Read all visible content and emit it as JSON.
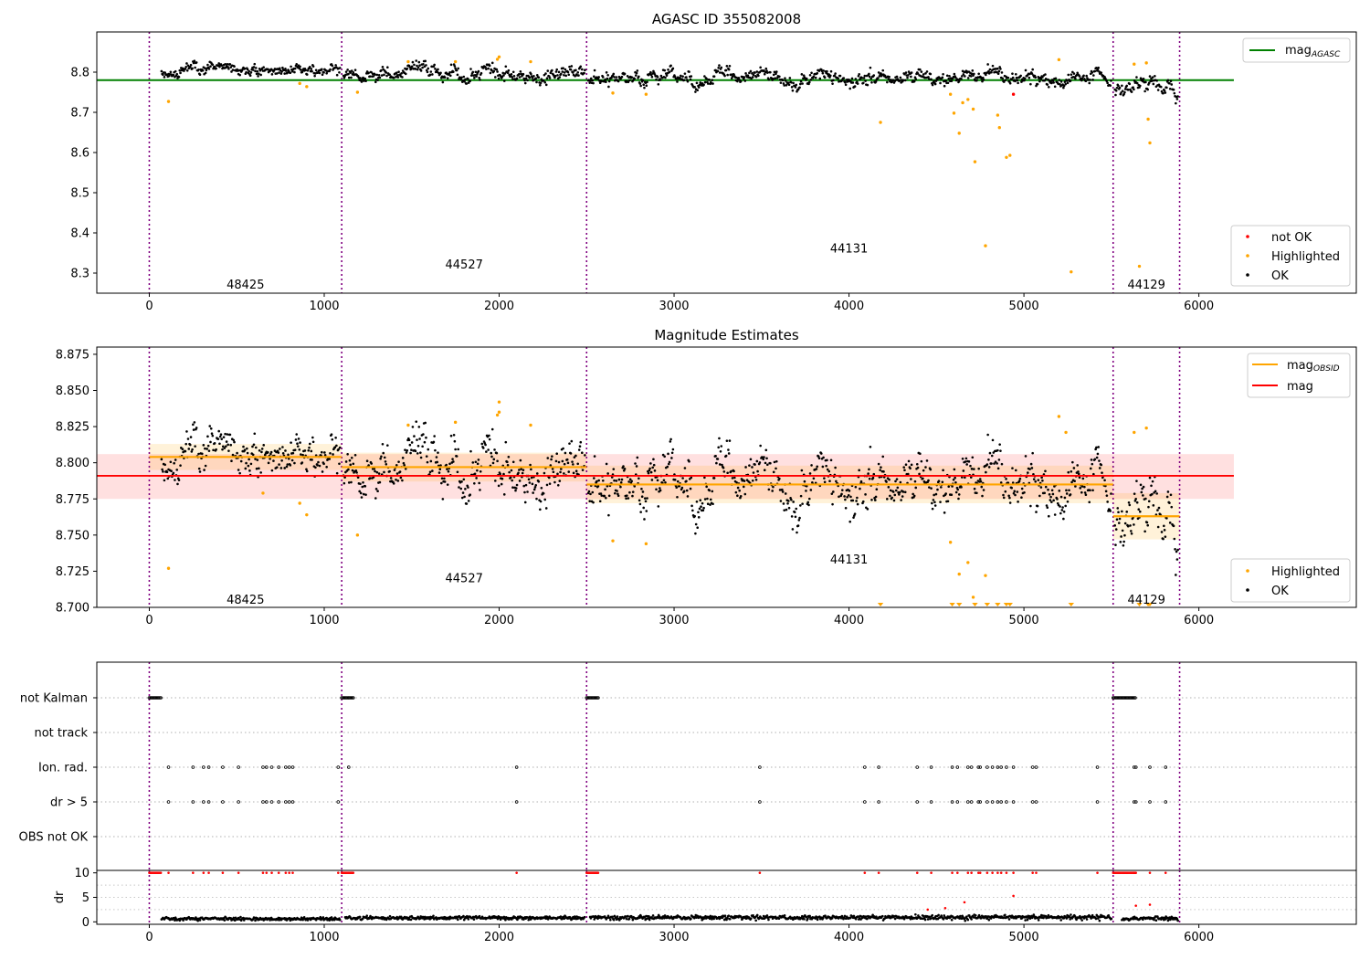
{
  "chart_data": [
    {
      "type": "scatter",
      "title": "AGASC ID 355082008",
      "xlim": [
        -300,
        6900
      ],
      "ylim": [
        8.25,
        8.9
      ],
      "xticks": [
        0,
        1000,
        2000,
        3000,
        4000,
        5000,
        6000
      ],
      "yticks": [
        8.3,
        8.4,
        8.5,
        8.6,
        8.7,
        8.8
      ],
      "obsid_boundaries": [
        0,
        1100,
        2500,
        5510,
        5890
      ],
      "obsid_labels": [
        {
          "text": "48425",
          "x": 550,
          "y": 8.27
        },
        {
          "text": "44527",
          "x": 1800,
          "y": 8.32
        },
        {
          "text": "44131",
          "x": 4000,
          "y": 8.36
        },
        {
          "text": "44129",
          "x": 5700,
          "y": 8.27
        }
      ],
      "hlines": [
        {
          "name": "mag_AGASC",
          "value": 8.78,
          "x0": -300,
          "x1": 6200,
          "color": "#008000"
        }
      ],
      "segments": [
        {
          "x0": 70,
          "x1": 1090,
          "level": 8.805,
          "noise": 0.009
        },
        {
          "x0": 1110,
          "x1": 2490,
          "level": 8.798,
          "noise": 0.011
        },
        {
          "x0": 2510,
          "x1": 5500,
          "level": 8.783,
          "noise": 0.011
        },
        {
          "x0": 5520,
          "x1": 5880,
          "level": 8.765,
          "noise": 0.012
        }
      ],
      "highlighted_points": [
        [
          110,
          8.727
        ],
        [
          860,
          8.772
        ],
        [
          900,
          8.764
        ],
        [
          1190,
          8.75
        ],
        [
          1480,
          8.826
        ],
        [
          1750,
          8.826
        ],
        [
          1990,
          8.832
        ],
        [
          2000,
          8.838
        ],
        [
          2180,
          8.826
        ],
        [
          2650,
          8.748
        ],
        [
          2840,
          8.745
        ],
        [
          4180,
          8.675
        ],
        [
          4580,
          8.745
        ],
        [
          4600,
          8.698
        ],
        [
          4630,
          8.648
        ],
        [
          4650,
          8.724
        ],
        [
          4680,
          8.732
        ],
        [
          4710,
          8.708
        ],
        [
          4720,
          8.577
        ],
        [
          4780,
          8.368
        ],
        [
          4850,
          8.693
        ],
        [
          4860,
          8.662
        ],
        [
          4900,
          8.588
        ],
        [
          4920,
          8.593
        ],
        [
          5200,
          8.831
        ],
        [
          5270,
          8.303
        ],
        [
          5630,
          8.82
        ],
        [
          5660,
          8.317
        ],
        [
          5700,
          8.823
        ],
        [
          5710,
          8.683
        ],
        [
          5720,
          8.624
        ]
      ],
      "not_ok_points": [
        [
          4940,
          8.745
        ]
      ],
      "legends": {
        "lines": [
          {
            "label": "mag",
            "subscript": "AGASC",
            "color": "#008000"
          }
        ],
        "markers": [
          {
            "label": "not OK",
            "color": "#ff0000"
          },
          {
            "label": "Highlighted",
            "color": "#ffa500"
          },
          {
            "label": "OK",
            "color": "#000000"
          }
        ]
      },
      "legend_placement": [
        "upper right",
        "lower right"
      ]
    },
    {
      "type": "scatter",
      "title": "Magnitude Estimates",
      "xlim": [
        -300,
        6900
      ],
      "ylim": [
        8.7,
        8.88
      ],
      "xticks": [
        0,
        1000,
        2000,
        3000,
        4000,
        5000,
        6000
      ],
      "yticks": [
        8.7,
        8.725,
        8.75,
        8.775,
        8.8,
        8.825,
        8.85,
        8.875
      ],
      "ytick_labels": [
        "8.700",
        "8.725",
        "8.750",
        "8.775",
        "8.800",
        "8.825",
        "8.850",
        "8.875"
      ],
      "obsid_boundaries": [
        0,
        1100,
        2500,
        5510,
        5890
      ],
      "obsid_labels": [
        {
          "text": "48425",
          "x": 550,
          "y": 8.705
        },
        {
          "text": "44527",
          "x": 1800,
          "y": 8.72
        },
        {
          "text": "44131",
          "x": 4000,
          "y": 8.733
        },
        {
          "text": "44129",
          "x": 5700,
          "y": 8.705
        }
      ],
      "mag_band": {
        "value": 8.791,
        "lo": 8.775,
        "hi": 8.806,
        "x0": -300,
        "x1": 6200,
        "color": "#ff0000"
      },
      "obsid_mags": [
        {
          "x0": 0,
          "x1": 1100,
          "value": 8.804,
          "lo": 8.795,
          "hi": 8.813
        },
        {
          "x0": 1100,
          "x1": 2500,
          "value": 8.797,
          "lo": 8.787,
          "hi": 8.807
        },
        {
          "x0": 2500,
          "x1": 5510,
          "value": 8.785,
          "lo": 8.772,
          "hi": 8.798
        },
        {
          "x0": 5510,
          "x1": 5890,
          "value": 8.763,
          "lo": 8.747,
          "hi": 8.779
        }
      ],
      "segments": [
        {
          "x0": 70,
          "x1": 1090,
          "level": 8.805,
          "noise": 0.009
        },
        {
          "x0": 1110,
          "x1": 2490,
          "level": 8.798,
          "noise": 0.011
        },
        {
          "x0": 2510,
          "x1": 5500,
          "level": 8.783,
          "noise": 0.011
        },
        {
          "x0": 5520,
          "x1": 5880,
          "level": 8.765,
          "noise": 0.012
        }
      ],
      "highlighted_points": [
        [
          110,
          8.727
        ],
        [
          650,
          8.779
        ],
        [
          860,
          8.772
        ],
        [
          900,
          8.764
        ],
        [
          1190,
          8.75
        ],
        [
          1480,
          8.826
        ],
        [
          1750,
          8.828
        ],
        [
          1990,
          8.833
        ],
        [
          2000,
          8.842
        ],
        [
          2000,
          8.835
        ],
        [
          2180,
          8.826
        ],
        [
          2650,
          8.746
        ],
        [
          2840,
          8.744
        ],
        [
          4580,
          8.745
        ],
        [
          4630,
          8.723
        ],
        [
          4680,
          8.731
        ],
        [
          4710,
          8.707
        ],
        [
          4780,
          8.722
        ],
        [
          5200,
          8.832
        ],
        [
          5240,
          8.821
        ],
        [
          5630,
          8.821
        ],
        [
          5700,
          8.824
        ]
      ],
      "offscale_points": [
        4180,
        4590,
        4630,
        4720,
        4790,
        4850,
        4900,
        4920,
        5270,
        5660,
        5710,
        5720
      ],
      "legends": {
        "lines": [
          {
            "label": "mag",
            "subscript": "OBSID",
            "color": "#ffa500"
          },
          {
            "label": "mag",
            "subscript": "",
            "color": "#ff0000"
          }
        ],
        "markers": [
          {
            "label": "Highlighted",
            "color": "#ffa500"
          },
          {
            "label": "OK",
            "color": "#000000"
          }
        ]
      },
      "legend_placement": [
        "upper right",
        "lower right"
      ]
    },
    {
      "type": "scatter",
      "xlim": [
        -300,
        6900
      ],
      "categories": [
        "not Kalman",
        "not track",
        "Ion. rad.",
        "dr > 5",
        "OBS not OK"
      ],
      "obsid_boundaries": [
        0,
        1100,
        2500,
        5510,
        5890
      ],
      "flags": {
        "not Kalman": [
          [
            0,
            70
          ],
          [
            1100,
            1170
          ],
          [
            2500,
            2570
          ],
          [
            5510,
            5640
          ]
        ],
        "not track": [],
        "Ion. rad.": [
          110,
          250,
          310,
          340,
          420,
          510,
          650,
          670,
          700,
          740,
          780,
          800,
          820,
          1080,
          1140,
          2100,
          3490,
          4090,
          4170,
          4390,
          4470,
          4590,
          4620,
          4680,
          4700,
          4740,
          4750,
          4790,
          4820,
          4850,
          4870,
          4900,
          4940,
          5050,
          5070,
          5420,
          5630,
          5640,
          5720,
          5810
        ],
        "dr > 5": [
          110,
          250,
          310,
          340,
          420,
          510,
          650,
          670,
          700,
          740,
          780,
          800,
          820,
          1080,
          2100,
          3490,
          4090,
          4170,
          4390,
          4470,
          4590,
          4620,
          4680,
          4700,
          4740,
          4750,
          4790,
          4820,
          4850,
          4870,
          4900,
          4940,
          5050,
          5070,
          5420,
          5630,
          5640,
          5720,
          5810
        ],
        "OBS not OK": []
      }
    },
    {
      "type": "scatter",
      "ylabel": "dr",
      "xlim": [
        -300,
        6900
      ],
      "ylim": [
        -0.5,
        10.5
      ],
      "yticks": [
        0,
        5,
        10
      ],
      "xticks": [
        0,
        1000,
        2000,
        3000,
        4000,
        5000,
        6000
      ],
      "obsid_boundaries": [
        0,
        1100,
        2500,
        5510,
        5890
      ],
      "dr_segments": [
        {
          "x0": 70,
          "x1": 1090,
          "level": 0.6,
          "noise": 0.3
        },
        {
          "x0": 1120,
          "x1": 2490,
          "level": 0.8,
          "noise": 0.35
        },
        {
          "x0": 2520,
          "x1": 5500,
          "level": 0.9,
          "noise": 0.45
        },
        {
          "x0": 5560,
          "x1": 5880,
          "level": 0.7,
          "noise": 0.4
        }
      ],
      "clipped_red_x": [
        110,
        250,
        310,
        340,
        420,
        510,
        650,
        670,
        700,
        740,
        780,
        800,
        820,
        1080,
        2100,
        3490,
        4090,
        4170,
        4390,
        4470,
        4590,
        4620,
        4680,
        4700,
        4740,
        4750,
        4790,
        4820,
        4850,
        4870,
        4900,
        4940,
        5050,
        5070,
        5420,
        5630,
        5640,
        5720,
        5810
      ],
      "clipped_red_runs": [
        [
          0,
          70
        ],
        [
          1100,
          1170
        ],
        [
          2500,
          2570
        ],
        [
          5510,
          5640
        ]
      ],
      "extra_red_points": [
        [
          4450,
          2.5
        ],
        [
          4550,
          2.8
        ],
        [
          4660,
          4.0
        ],
        [
          4940,
          5.3
        ],
        [
          5640,
          3.3
        ],
        [
          5720,
          3.5
        ]
      ]
    }
  ]
}
